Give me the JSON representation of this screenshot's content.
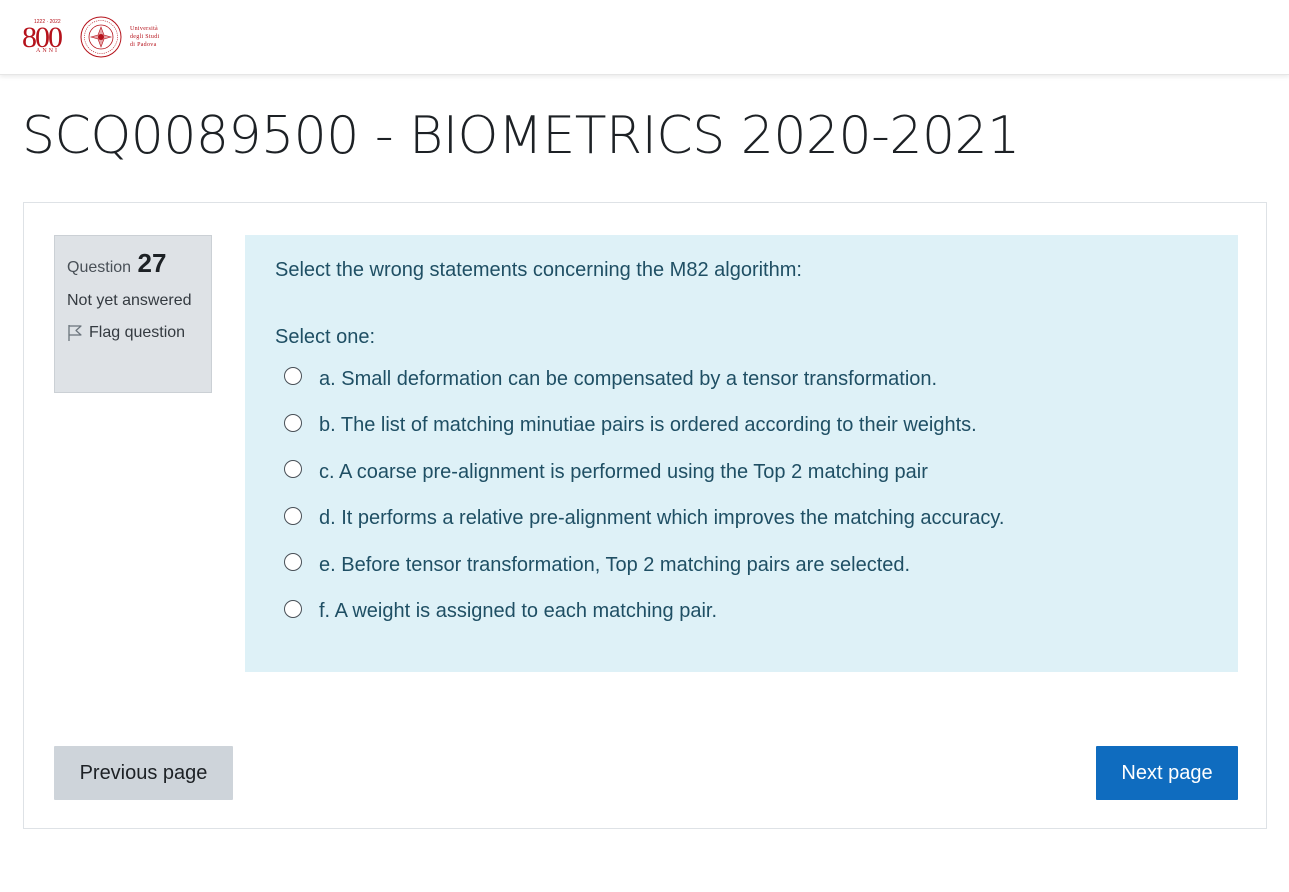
{
  "header": {
    "logo": {
      "big_number": "800",
      "years": "1222 · 2022",
      "anni": "ANNI",
      "university_lines": [
        "Università",
        "degli Studi",
        "di Padova"
      ]
    }
  },
  "page": {
    "title": "SCQ0089500 - BIOMETRICS 2020-2021"
  },
  "question_info": {
    "label": "Question",
    "number": "27",
    "state": "Not yet answered",
    "flag_label": "Flag question"
  },
  "question": {
    "text": "Select the wrong statements concerning the M82 algorithm:",
    "prompt": "Select one:",
    "answers": [
      "a. Small deformation can be compensated by a tensor transformation.",
      "b. The list of matching minutiae pairs is ordered according to their weights.",
      "c. A coarse pre-alignment is performed using the Top 2 matching pair",
      "d. It performs a relative pre-alignment which improves the matching accuracy.",
      "e. Before tensor transformation, Top 2 matching pairs are selected.",
      "f. A weight is assigned to each matching pair."
    ]
  },
  "navigation": {
    "previous_label": "Previous page",
    "next_label": "Next page"
  },
  "colors": {
    "brand_red": "#b5121b",
    "question_bg": "#def1f7",
    "info_bg": "#dee2e6",
    "primary": "#0f6cbf",
    "secondary": "#ced4da"
  }
}
